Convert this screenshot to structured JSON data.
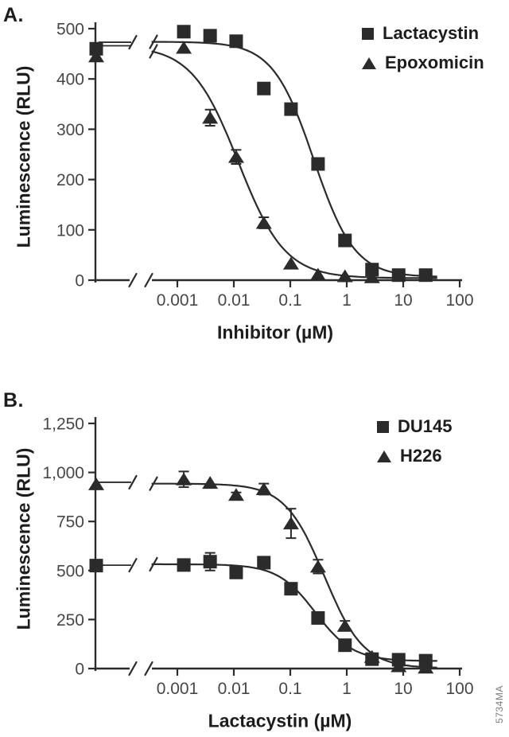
{
  "figure": {
    "watermark": "5734MA"
  },
  "chart_data": [
    {
      "type": "scatter",
      "panel_label": "A.",
      "xlabel": "Inhibitor (µM)",
      "ylabel": "Luminescence (RLU)",
      "x_scale": "log",
      "xlim": [
        0.001,
        100
      ],
      "ylim": [
        0,
        500
      ],
      "x_tick_values": [
        0.001,
        0.01,
        0.1,
        1,
        10,
        100
      ],
      "x_tick_labels": [
        "0.001",
        "0.01",
        "0.1",
        "1",
        "10",
        "100"
      ],
      "y_tick_values": [
        0,
        100,
        200,
        300,
        400,
        500
      ],
      "y_tick_labels": [
        "0",
        "100",
        "200",
        "300",
        "400",
        "500"
      ],
      "axis_break_x": true,
      "legend_position": "top-right",
      "series": [
        {
          "name": "Lactacystin",
          "marker": "square",
          "control_rlu": 460,
          "plateau_rlu": 473,
          "x": [
            0.0013,
            0.0038,
            0.011,
            0.034,
            0.103,
            0.31,
            0.93,
            2.8,
            8.3,
            25
          ],
          "y": [
            494,
            486,
            475,
            381,
            340,
            231,
            79,
            21,
            10,
            10
          ],
          "err": [
            0,
            0,
            0,
            0,
            0,
            0,
            0,
            0,
            0,
            0
          ],
          "fit": {
            "top": 474,
            "bottom": 6,
            "ic50": 0.26,
            "hill": 1.2
          }
        },
        {
          "name": "Epoxomicin",
          "marker": "triangle",
          "control_rlu": 445,
          "plateau_rlu": 466,
          "x": [
            0.0013,
            0.0038,
            0.011,
            0.034,
            0.103,
            0.31,
            0.93,
            2.8
          ],
          "y": [
            462,
            323,
            245,
            114,
            33,
            11,
            8,
            6
          ],
          "err": [
            0,
            16,
            14,
            11,
            0,
            0,
            0,
            0
          ],
          "fit": {
            "top": 466,
            "bottom": 4,
            "ic50": 0.012,
            "hill": 1.05
          }
        }
      ]
    },
    {
      "type": "scatter",
      "panel_label": "B.",
      "xlabel": "Lactacystin (µM)",
      "ylabel": "Luminescence (RLU)",
      "x_scale": "log",
      "xlim": [
        0.001,
        100
      ],
      "ylim": [
        0,
        1250
      ],
      "x_tick_values": [
        0.001,
        0.01,
        0.1,
        1,
        10,
        100
      ],
      "x_tick_labels": [
        "0.001",
        "0.01",
        "0.1",
        "1",
        "10",
        "100"
      ],
      "y_tick_values": [
        0,
        250,
        500,
        750,
        1000,
        1250
      ],
      "y_tick_labels": [
        "0",
        "250",
        "500",
        "750",
        "1,000",
        "1,250"
      ],
      "axis_break_x": true,
      "legend_position": "top-right",
      "series": [
        {
          "name": "DU145",
          "marker": "square",
          "control_rlu": 525,
          "plateau_rlu": 527,
          "x": [
            0.0013,
            0.0038,
            0.011,
            0.034,
            0.103,
            0.31,
            0.93,
            2.8,
            8.3,
            25
          ],
          "y": [
            528,
            545,
            490,
            540,
            407,
            258,
            119,
            48,
            45,
            40
          ],
          "err": [
            0,
            45,
            0,
            0,
            0,
            0,
            0,
            0,
            0,
            0
          ],
          "fit": {
            "top": 532,
            "bottom": 38,
            "ic50": 0.28,
            "hill": 1.3
          }
        },
        {
          "name": "H226",
          "marker": "triangle",
          "control_rlu": 940,
          "plateau_rlu": 950,
          "x": [
            0.0013,
            0.0038,
            0.011,
            0.034,
            0.103,
            0.31,
            0.93,
            2.8,
            8.3,
            25
          ],
          "y": [
            965,
            947,
            886,
            915,
            740,
            520,
            218,
            60,
            12,
            5
          ],
          "err": [
            40,
            0,
            12,
            28,
            75,
            35,
            25,
            0,
            0,
            0
          ],
          "fit": {
            "top": 943,
            "bottom": 2,
            "ic50": 0.4,
            "hill": 1.25
          }
        }
      ]
    }
  ]
}
